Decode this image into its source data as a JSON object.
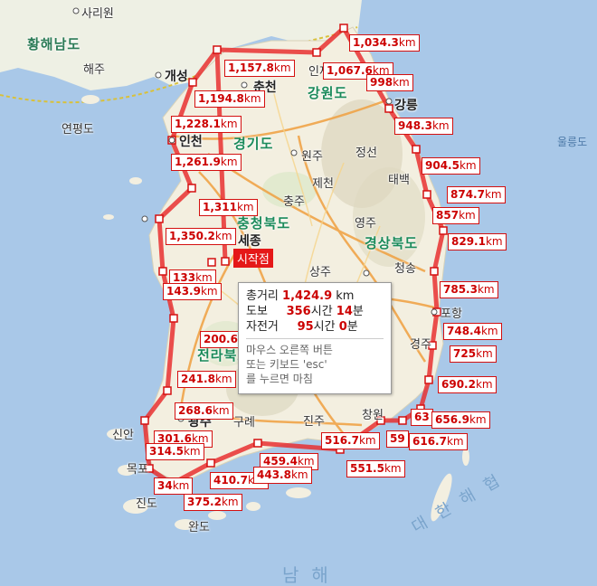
{
  "start_label": "시작점",
  "tooltip": {
    "total_label": "총거리",
    "total_value": "1,424.9",
    "total_unit": "km",
    "walk_label": "도보",
    "walk_hours": "356",
    "walk_hours_unit": "시간",
    "walk_minutes": "14",
    "walk_minutes_unit": "분",
    "bike_label": "자전거",
    "bike_hours": "95",
    "bike_hours_unit": "시간",
    "bike_minutes": "0",
    "bike_minutes_unit": "분",
    "hint_line1": "마우스 오른쪽 버튼",
    "hint_line2": "또는 키보드 'esc'",
    "hint_line3": "를 누르면 마침"
  },
  "labels": {
    "sariwon": "사리원",
    "hwanghae": "황해남도",
    "haeju": "해주",
    "gaeseong": "개성",
    "yeonpyeong": "연평도",
    "incheon": "인천",
    "chuncheon": "춘천",
    "inje": "인제",
    "gangwon": "강원도",
    "gangneung": "강릉",
    "wonju": "원주",
    "gyeonggi": "경기도",
    "jeongseon": "정선",
    "taebaek": "태백",
    "jecheon": "제천",
    "chungju": "충주",
    "chungbuk": "충청북도",
    "yeongju": "영주",
    "gyeongbuk": "경상북도",
    "cheongsong": "청송",
    "sangju": "상주",
    "sejong": "세종",
    "pohang": "포항",
    "gyeongju": "경주",
    "jeonbuk": "전라북도",
    "gwangju": "광주",
    "gurye": "구례",
    "jinju": "진주",
    "changwon": "창원",
    "sinan": "신안",
    "mokpo": "목포",
    "jindo": "진도",
    "wando": "완도",
    "ulleung": "울릉도",
    "daehan": "대한해협",
    "namhae": "남해"
  },
  "distances": [
    "1,034.3",
    "1,157.8",
    "1,067.6",
    "998",
    "1,194.8",
    "1,228.1",
    "948.3",
    "1,261.9",
    "904.5",
    "874.7",
    "1,311",
    "857",
    "829.1",
    "1,350.2",
    "785.3",
    "133",
    "143.9",
    "748.4",
    "725",
    "200.6",
    "690.2",
    "241.8",
    "268.6",
    "63",
    "656.9",
    "301.6",
    "59",
    "616.7",
    "314.5",
    "516.7",
    "551.5",
    "459.4",
    "410.7",
    "443.8",
    "34",
    "375.2"
  ],
  "unit": "km",
  "colors": {
    "route": "#e83030",
    "sea": "#a9c8e8",
    "land": "#f4f1e6",
    "label_red": "#cc0000"
  }
}
